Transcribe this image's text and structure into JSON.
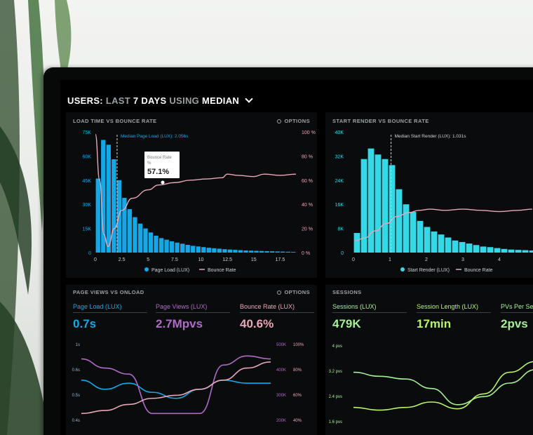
{
  "header": {
    "users": "USERS:",
    "last": "LAST",
    "days": "7 DAYS",
    "using": "USING",
    "median": "MEDIAN"
  },
  "options_label": "OPTIONS",
  "colors": {
    "blue": "#16a8e6",
    "cyan": "#33d9e6",
    "pink": "#e8a7b8",
    "purple": "#b06ac8",
    "green": "#a4f095",
    "lime": "#b7f56a",
    "bg": "#000000"
  },
  "panels": {
    "load_time": {
      "title": "LOAD TIME VS BOUNCE RATE",
      "median_label": "Median Page Load (LUX): 2.056s",
      "tooltip": {
        "label": "Bounce Rate",
        "sub": "%",
        "value": "57.1%"
      },
      "legend": [
        "Page Load (LUX)",
        "Bounce Rate"
      ]
    },
    "start_render": {
      "title": "START RENDER VS BOUNCE RATE",
      "median_label": "Median Start Render (LUX): 1.031s",
      "legend": [
        "Start Render (LUX)",
        "Bounce Rate"
      ]
    },
    "page_views": {
      "title": "PAGE VIEWS VS ONLOAD",
      "metrics": [
        {
          "label": "Page Load (LUX)",
          "value": "0.7s"
        },
        {
          "label": "Page Views (LUX)",
          "value": "2.7Mpvs"
        },
        {
          "label": "Bounce Rate (LUX)",
          "value": "40.6%"
        }
      ]
    },
    "sessions": {
      "title": "SESSIONS",
      "metrics": [
        {
          "label": "Sessions (LUX)",
          "value": "479K"
        },
        {
          "label": "Session Length (LUX)",
          "value": "17min"
        },
        {
          "label": "PVs Per Se",
          "value": "2pvs"
        }
      ]
    }
  },
  "chart_data": [
    {
      "type": "bar",
      "title": "LOAD TIME VS BOUNCE RATE",
      "x_ticks": [
        "0",
        "2.5",
        "5",
        "7.5",
        "10",
        "12.5",
        "15",
        "17.5"
      ],
      "y_ticks": [
        "0",
        "15K",
        "30K",
        "45K",
        "60K",
        "75K"
      ],
      "y2_ticks": [
        "0 %",
        "20 %",
        "40 %",
        "60 %",
        "80 %",
        "100 %"
      ],
      "ylim": [
        0,
        75000
      ],
      "y2lim": [
        0,
        100
      ],
      "series": [
        {
          "name": "Page Load (LUX)",
          "values": [
            46000,
            70000,
            67000,
            58000,
            45000,
            34000,
            27000,
            22000,
            18000,
            15000,
            12500,
            10500,
            9000,
            8000,
            7000,
            6200,
            5500,
            4800,
            4200,
            3800,
            3400,
            3000,
            2700,
            2400,
            2100,
            1900,
            1700,
            1500,
            1300,
            1200,
            1100,
            1000,
            900,
            800,
            700,
            600,
            500,
            400
          ]
        },
        {
          "name": "Bounce Rate",
          "x": [
            0,
            0.4,
            0.8,
            1.2,
            1.8,
            2.5,
            3.5,
            5,
            6,
            7.5,
            9,
            10.5,
            12,
            12.5,
            13.5,
            15,
            16,
            17.5,
            19
          ],
          "y": [
            98,
            60,
            15,
            5,
            20,
            35,
            45,
            52,
            56,
            58,
            60,
            61,
            62,
            65,
            64,
            63,
            65,
            64,
            65
          ]
        }
      ]
    },
    {
      "type": "bar",
      "title": "START RENDER VS BOUNCE RATE",
      "x_ticks": [
        "0",
        "1",
        "2",
        "3",
        "4"
      ],
      "y_ticks": [
        "0",
        "8K",
        "16K",
        "24K",
        "32K",
        "40K"
      ],
      "ylim": [
        0,
        40000
      ],
      "series": [
        {
          "name": "Start Render (LUX)",
          "values": [
            6500,
            31000,
            34500,
            32500,
            31000,
            29000,
            21000,
            16000,
            13500,
            10500,
            8500,
            7000,
            6000,
            5000,
            4000,
            3500,
            3000,
            2500,
            2000,
            1800,
            1500,
            1200,
            1000,
            900,
            800,
            700
          ]
        },
        {
          "name": "Bounce Rate",
          "x": [
            0.05,
            0.3,
            0.6,
            0.9,
            1.2,
            1.5,
            1.8,
            2.1,
            2.5,
            3,
            3.5,
            4,
            4.5,
            4.9
          ],
          "y": [
            10,
            12,
            18,
            24,
            30,
            33,
            35,
            36,
            35,
            36,
            35,
            34,
            35,
            36
          ]
        }
      ]
    },
    {
      "type": "line",
      "title": "PAGE VIEWS VS ONLOAD",
      "y_ticks": [
        "1s",
        "0.6s",
        "0.5s",
        "0.4s"
      ],
      "y2_ticks": [
        "500K",
        "400K",
        "300K",
        "200K"
      ],
      "y3_ticks": [
        "100%",
        "80%",
        "60%",
        "40%"
      ],
      "series": [
        {
          "name": "Page Load (LUX)",
          "color": "#16a8e6",
          "x": [
            0,
            1,
            2,
            3,
            4,
            5,
            6,
            7,
            8
          ],
          "y": [
            0.53,
            0.5,
            0.52,
            0.49,
            0.47,
            0.5,
            0.53,
            0.52,
            0.52
          ]
        },
        {
          "name": "Page Views (LUX)",
          "color": "#b06ac8",
          "x": [
            0,
            1,
            2,
            3,
            4,
            5,
            6,
            7,
            8
          ],
          "y": [
            0.6,
            0.57,
            0.55,
            0.42,
            0.42,
            0.42,
            0.58,
            0.61,
            0.6
          ]
        },
        {
          "name": "Bounce Rate (LUX)",
          "color": "#e8a7b8",
          "x": [
            0,
            1,
            2,
            3,
            4,
            5,
            6,
            7,
            8
          ],
          "y": [
            0.42,
            0.43,
            0.45,
            0.47,
            0.48,
            0.5,
            0.53,
            0.57,
            0.59
          ]
        }
      ]
    },
    {
      "type": "line",
      "title": "SESSIONS",
      "y_ticks": [
        "4 pvs",
        "3.2 pvs",
        "2.4 pvs",
        "1.6 pvs"
      ],
      "series": [
        {
          "name": "Sessions (LUX)",
          "color": "#a4f095",
          "x": [
            0,
            1,
            2,
            3,
            4,
            5,
            6,
            7
          ],
          "y": [
            3.2,
            3.05,
            2.95,
            2.6,
            2.0,
            2.3,
            2.8,
            3.3
          ]
        },
        {
          "name": "Session Length (LUX)",
          "color": "#b7f56a",
          "x": [
            0,
            1,
            2,
            3,
            4,
            5,
            6,
            7
          ],
          "y": [
            1.9,
            1.8,
            1.9,
            2.1,
            1.85,
            2.4,
            3.2,
            3.6
          ]
        }
      ]
    }
  ]
}
